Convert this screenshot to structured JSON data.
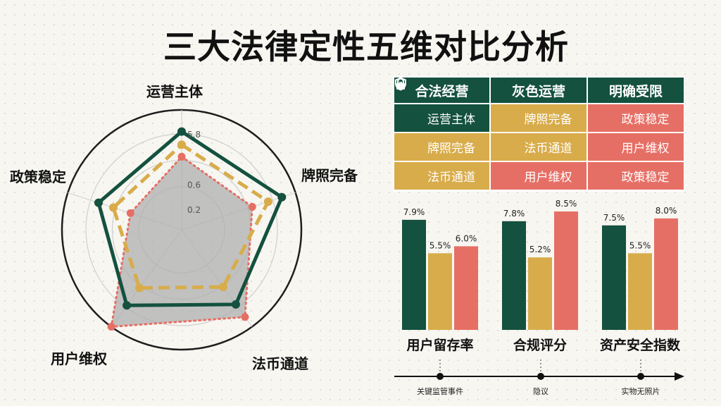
{
  "title": "三大法律定性五维对比分析",
  "colors": {
    "green": "#14513f",
    "gold": "#d8ac4a",
    "red": "#e66f65",
    "fill": "#bdbdbd"
  },
  "chart_data": [
    {
      "type": "radar",
      "axes": [
        "运营主体",
        "牌照完备",
        "法币通道",
        "用户维权",
        "政策稳定"
      ],
      "tick_labels": [
        "5.8",
        "0.6",
        "0.2"
      ],
      "series": [
        {
          "style": "solid",
          "color": "#14513f",
          "values": [
            0.82,
            0.88,
            0.77,
            0.78,
            0.73
          ]
        },
        {
          "style": "dashed",
          "color": "#d8ac4a",
          "values": [
            0.71,
            0.76,
            0.59,
            0.6,
            0.6
          ]
        },
        {
          "style": "dotted",
          "color": "#e66f65",
          "values": [
            0.61,
            0.62,
            0.9,
            1.0,
            0.45
          ]
        }
      ]
    },
    {
      "type": "bar",
      "categories": [
        "用户留存率",
        "合规评分",
        "资产安全指数"
      ],
      "series": [
        {
          "color": "#14513f",
          "values": [
            7.9,
            7.8,
            7.5
          ],
          "labels": [
            "7.9%",
            "7.8%",
            "7.5%"
          ]
        },
        {
          "color": "#d8ac4a",
          "values": [
            5.5,
            5.2,
            5.5
          ],
          "labels": [
            "5.5%",
            "5.2%",
            "5.5%"
          ]
        },
        {
          "color": "#e66f65",
          "values": [
            6.0,
            8.5,
            8.0
          ],
          "labels": [
            "6.0%",
            "8.5%",
            "8.0%"
          ]
        }
      ]
    }
  ],
  "table": {
    "headers": [
      "合法经营",
      "灰色运营",
      "明确受限"
    ],
    "rows": [
      [
        {
          "text": "运营主体",
          "icon": "shield-question-icon",
          "color": "green"
        },
        {
          "text": "牌照完备",
          "icon": "shield-question-icon",
          "color": "gold"
        },
        {
          "text": "政策稳定",
          "icon": "shield-question-icon",
          "color": "red"
        }
      ],
      [
        {
          "text": "牌照完备",
          "icon": "shield-question-icon",
          "color": "gold"
        },
        {
          "text": "法币通道",
          "icon": "lock-icon",
          "color": "gold"
        },
        {
          "text": "用户维权",
          "icon": "lock-icon",
          "color": "red"
        }
      ],
      [
        {
          "text": "法币通道",
          "icon": "shield-question-icon",
          "color": "gold"
        },
        {
          "text": "用户维权",
          "icon": "lock-icon",
          "color": "red"
        },
        {
          "text": "政策稳定",
          "icon": "lock-icon",
          "color": "red"
        }
      ]
    ]
  },
  "timeline": [
    "关键监管事件",
    "隐议",
    "实物无照片"
  ]
}
